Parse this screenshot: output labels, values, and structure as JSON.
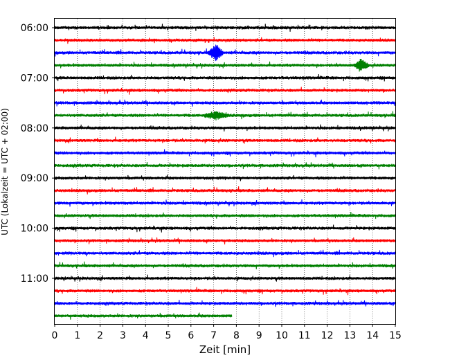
{
  "chart_data": {
    "type": "helicorder",
    "xlabel": "Zeit  [min]",
    "ylabel": "UTC (Lokalzeit = UTC + 02:00)",
    "xlim": [
      0,
      15
    ],
    "x_ticks": [
      "0",
      "1",
      "2",
      "3",
      "4",
      "5",
      "6",
      "7",
      "8",
      "9",
      "10",
      "11",
      "12",
      "13",
      "14",
      "15"
    ],
    "y_tick_labels": [
      "06:00",
      "07:00",
      "08:00",
      "09:00",
      "10:00",
      "11:00"
    ],
    "grid": "vertical dotted lines at each minute",
    "colors_cycle": [
      "#000000",
      "#ff0000",
      "#0000ff",
      "#008000"
    ],
    "traces": [
      {
        "start": "06:00",
        "color": "#000000",
        "minutes": 15
      },
      {
        "start": "06:15",
        "color": "#ff0000",
        "minutes": 15
      },
      {
        "start": "06:30",
        "color": "#0000ff",
        "minutes": 15
      },
      {
        "start": "06:45",
        "color": "#008000",
        "minutes": 15
      },
      {
        "start": "07:00",
        "color": "#000000",
        "minutes": 15
      },
      {
        "start": "07:15",
        "color": "#ff0000",
        "minutes": 15
      },
      {
        "start": "07:30",
        "color": "#0000ff",
        "minutes": 15
      },
      {
        "start": "07:45",
        "color": "#008000",
        "minutes": 15
      },
      {
        "start": "08:00",
        "color": "#000000",
        "minutes": 15
      },
      {
        "start": "08:15",
        "color": "#ff0000",
        "minutes": 15
      },
      {
        "start": "08:30",
        "color": "#0000ff",
        "minutes": 15
      },
      {
        "start": "08:45",
        "color": "#008000",
        "minutes": 15
      },
      {
        "start": "09:00",
        "color": "#000000",
        "minutes": 15
      },
      {
        "start": "09:15",
        "color": "#ff0000",
        "minutes": 15
      },
      {
        "start": "09:30",
        "color": "#0000ff",
        "minutes": 15
      },
      {
        "start": "09:45",
        "color": "#008000",
        "minutes": 15
      },
      {
        "start": "10:00",
        "color": "#000000",
        "minutes": 15
      },
      {
        "start": "10:15",
        "color": "#ff0000",
        "minutes": 15
      },
      {
        "start": "10:30",
        "color": "#0000ff",
        "minutes": 15
      },
      {
        "start": "10:45",
        "color": "#008000",
        "minutes": 15
      },
      {
        "start": "11:00",
        "color": "#000000",
        "minutes": 15
      },
      {
        "start": "11:15",
        "color": "#ff0000",
        "minutes": 15
      },
      {
        "start": "11:30",
        "color": "#0000ff",
        "minutes": 15
      },
      {
        "start": "11:45",
        "color": "#008000",
        "minutes": 7.8
      }
    ],
    "events": [
      {
        "trace": "06:30",
        "minute": 7.1,
        "amplitude": "large"
      },
      {
        "trace": "06:45",
        "minute": 13.5,
        "amplitude": "medium"
      },
      {
        "trace": "07:45",
        "minute": 7.1,
        "amplitude": "small"
      }
    ]
  }
}
